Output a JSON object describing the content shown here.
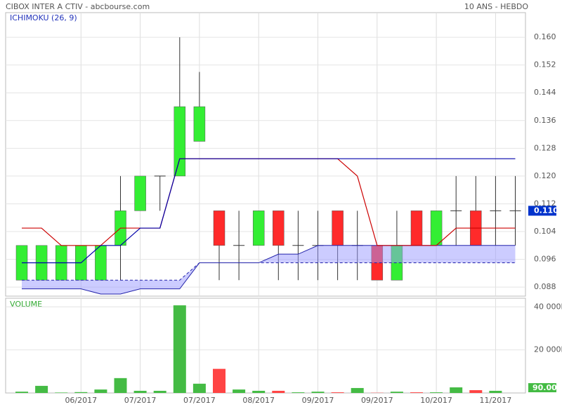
{
  "chart_data": [
    {
      "type": "candlestick",
      "title": "CIBOX INTER A CTIV - abcbourse.com",
      "subtitle": "10 ANS - HEBDO",
      "legend": "ICHIMOKU (26, 9)",
      "categories": [
        null,
        null,
        null,
        "06/2017",
        null,
        null,
        "07/2017",
        null,
        null,
        "07/2017",
        null,
        null,
        "08/2017",
        null,
        null,
        "09/2017",
        null,
        null,
        "09/2017",
        null,
        null,
        "10/2017",
        null,
        null,
        "11/2017",
        null
      ],
      "open": [
        0.09,
        0.09,
        0.09,
        0.09,
        0.09,
        0.1,
        0.11,
        0.12,
        0.12,
        0.13,
        0.11,
        0.1,
        0.1,
        0.11,
        0.1,
        0.1,
        0.11,
        0.1,
        0.1,
        0.09,
        0.11,
        0.1,
        0.11,
        0.11,
        0.11,
        0.11
      ],
      "high": [
        0.1,
        0.1,
        0.1,
        0.1,
        0.1,
        0.12,
        0.12,
        0.12,
        0.16,
        0.15,
        0.11,
        0.11,
        0.11,
        0.11,
        0.11,
        0.11,
        0.11,
        0.11,
        0.1,
        0.11,
        0.11,
        0.11,
        0.12,
        0.12,
        0.12,
        0.12
      ],
      "low": [
        0.09,
        0.09,
        0.09,
        0.09,
        0.09,
        0.09,
        0.11,
        0.11,
        0.12,
        0.13,
        0.09,
        0.09,
        0.1,
        0.09,
        0.09,
        0.09,
        0.09,
        0.09,
        0.09,
        0.09,
        0.1,
        0.1,
        0.1,
        0.1,
        0.1,
        0.1
      ],
      "close": [
        0.1,
        0.1,
        0.1,
        0.1,
        0.1,
        0.11,
        0.12,
        0.12,
        0.14,
        0.14,
        0.1,
        0.1,
        0.11,
        0.1,
        0.1,
        0.1,
        0.1,
        0.1,
        0.09,
        0.1,
        0.1,
        0.11,
        0.11,
        0.1,
        0.11,
        0.11
      ],
      "up_color": "#33ee33",
      "down_color": "#ff2a2a",
      "lines": [
        {
          "color": "#cc0000",
          "values": [
            0.105,
            0.105,
            0.1,
            0.1,
            0.1,
            0.105,
            0.105,
            0.105,
            0.125,
            0.125,
            0.125,
            0.125,
            0.125,
            0.125,
            0.125,
            0.125,
            0.125,
            0.12,
            0.1,
            0.1,
            0.1,
            0.1,
            0.105,
            0.105,
            0.105,
            0.105
          ]
        },
        {
          "color": "#0000aa",
          "values": [
            0.095,
            0.095,
            0.095,
            0.095,
            0.1,
            0.1,
            0.105,
            0.105,
            0.125,
            0.125,
            0.125,
            0.125,
            0.125,
            0.125,
            0.125,
            0.125,
            0.125,
            0.125,
            0.125,
            0.125,
            0.125,
            0.125,
            0.125,
            0.125,
            0.125,
            0.125
          ]
        }
      ],
      "cloud": {
        "color": "#9999ff",
        "line_color": "#2222aa",
        "span_a": [
          0.0875,
          0.0875,
          0.0875,
          0.0875,
          0.086,
          0.086,
          0.0875,
          0.0875,
          0.0875,
          0.095,
          0.095,
          0.095,
          0.095,
          0.0975,
          0.0975,
          0.1,
          0.1,
          0.1,
          0.1,
          0.1,
          0.1,
          0.1,
          0.1,
          0.1,
          0.1,
          0.1
        ],
        "span_b": [
          0.09,
          0.09,
          0.09,
          0.09,
          0.09,
          0.09,
          0.09,
          0.09,
          0.09,
          0.095,
          0.095,
          0.095,
          0.095,
          0.095,
          0.095,
          0.095,
          0.095,
          0.095,
          0.095,
          0.095,
          0.095,
          0.095,
          0.095,
          0.095,
          0.095,
          0.095
        ]
      },
      "ylim": [
        0.0854,
        0.1671
      ],
      "yticks": [
        0.088,
        0.096,
        0.104,
        0.112,
        {
          "value": 0.12,
          "label": "0.120"
        },
        0.128,
        0.136,
        0.144,
        0.152,
        {
          "value": 0.16,
          "label": "0.160"
        }
      ],
      "last_price": {
        "value": 0.11,
        "label": "0.110",
        "color": "#0033cc"
      },
      "grid": true
    },
    {
      "type": "bar",
      "title": "VOLUME",
      "values": [
        600000,
        3300000,
        200000,
        400000,
        1600000,
        6900000,
        1000000,
        1000000,
        40700000,
        4300000,
        11200000,
        1600000,
        1000000,
        1000000,
        300000,
        600000,
        300000,
        2300000,
        100000,
        600000,
        300000,
        300000,
        2600000,
        1300000,
        1000000,
        90
      ],
      "value_labels": [
        null,
        null,
        null,
        null,
        null,
        null,
        null,
        null,
        null,
        null,
        null,
        null,
        null,
        null,
        null,
        null,
        null,
        null,
        null,
        null,
        null,
        null,
        null,
        null,
        null,
        "90.00"
      ],
      "up_color": "#44bb44",
      "down_color": "#ff4444",
      "ylim": [
        0,
        44000000
      ],
      "yticks": [
        {
          "value": 20000000,
          "label": "20 000K"
        },
        {
          "value": 40000000,
          "label": "40 000K"
        }
      ],
      "grid": true
    }
  ]
}
